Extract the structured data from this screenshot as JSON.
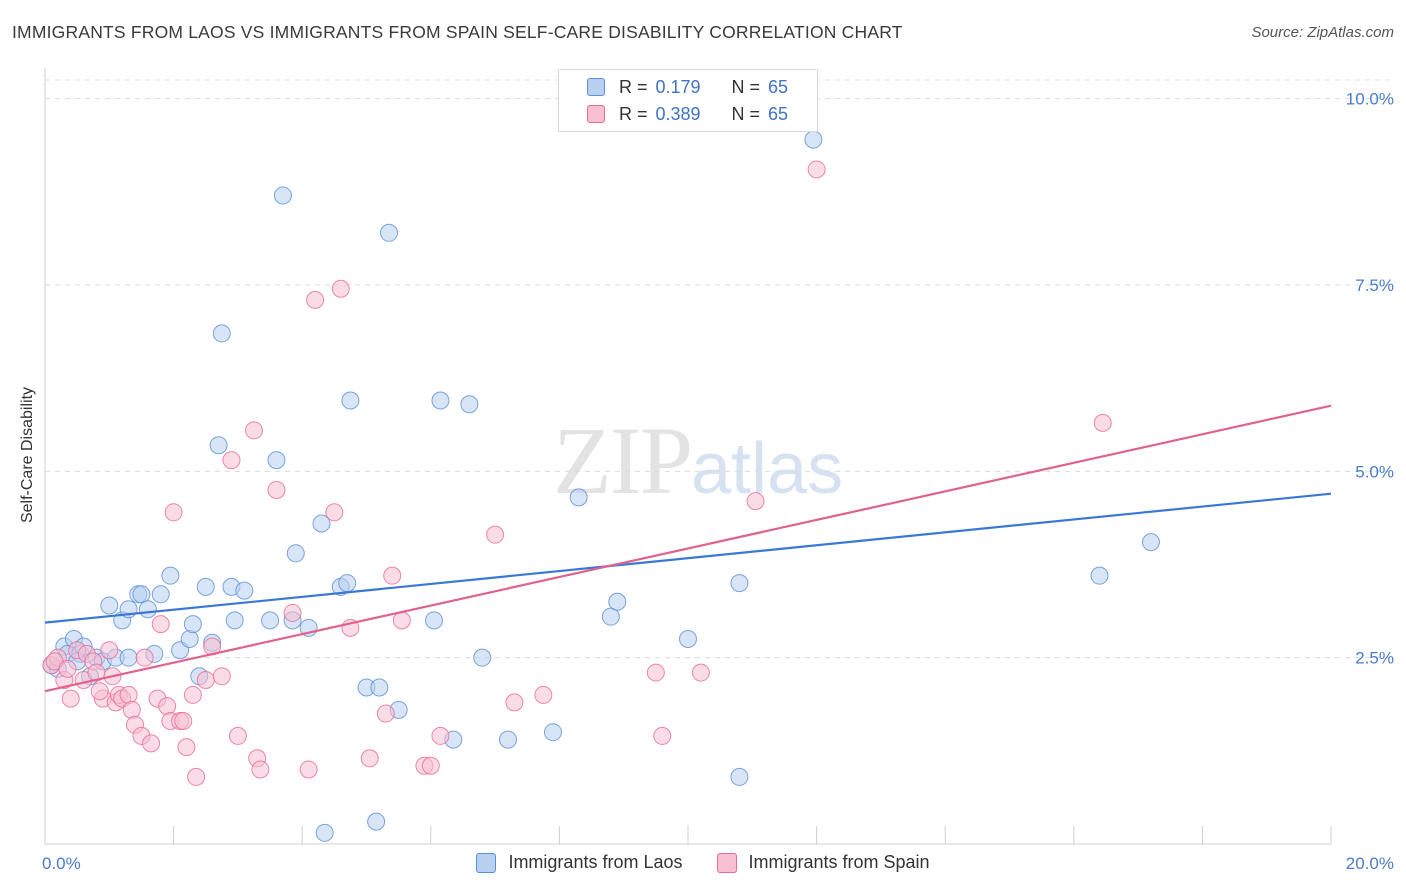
{
  "title": "IMMIGRANTS FROM LAOS VS IMMIGRANTS FROM SPAIN SELF-CARE DISABILITY CORRELATION CHART",
  "source": "Source: ZipAtlas.com",
  "watermark": {
    "zip": "ZIP",
    "atlas": "atlas"
  },
  "colors": {
    "laos": "#5b8fd6",
    "laos_fill": "#b8d0f0",
    "spain": "#e86a96",
    "spain_fill": "#f6bfd2",
    "tick": "#4a7cc9"
  },
  "legend": {
    "rows": [
      {
        "r_label": "R =",
        "r_value": "0.179",
        "n_label": "N =",
        "n_value": "65"
      },
      {
        "r_label": "R =",
        "r_value": "0.389",
        "n_label": "N =",
        "n_value": "65"
      }
    ]
  },
  "bottom_legend": {
    "laos": "Immigrants from Laos",
    "spain": "Immigrants from Spain"
  },
  "chart_data": {
    "type": "scatter",
    "title": "IMMIGRANTS FROM LAOS VS IMMIGRANTS FROM SPAIN SELF-CARE DISABILITY CORRELATION CHART",
    "xlabel": "",
    "ylabel": "Self-Care Disability",
    "xlim": [
      0,
      20
    ],
    "ylim": [
      0,
      10.25
    ],
    "x_tick_labels": [
      "0.0%",
      "20.0%"
    ],
    "y_ticks": [
      2.5,
      5.0,
      7.5,
      10.0
    ],
    "y_tick_labels": [
      "2.5%",
      "5.0%",
      "7.5%",
      "10.0%"
    ],
    "grid": "horizontal dashed",
    "legend_position": "top-center",
    "series": [
      {
        "name": "Immigrants from Laos",
        "trend": {
          "x": [
            0,
            20
          ],
          "y": [
            2.97,
            4.7
          ]
        },
        "points": [
          [
            0.1,
            2.4
          ],
          [
            0.2,
            2.35
          ],
          [
            0.3,
            2.65
          ],
          [
            0.35,
            2.55
          ],
          [
            0.45,
            2.75
          ],
          [
            0.55,
            2.55
          ],
          [
            0.6,
            2.65
          ],
          [
            0.7,
            2.25
          ],
          [
            0.8,
            2.5
          ],
          [
            0.9,
            2.45
          ],
          [
            1.0,
            3.2
          ],
          [
            1.1,
            2.5
          ],
          [
            1.2,
            3.0
          ],
          [
            1.3,
            3.15
          ],
          [
            1.45,
            3.35
          ],
          [
            1.5,
            3.35
          ],
          [
            1.6,
            3.15
          ],
          [
            1.7,
            2.55
          ],
          [
            1.8,
            3.35
          ],
          [
            1.95,
            3.6
          ],
          [
            2.1,
            2.6
          ],
          [
            2.25,
            2.75
          ],
          [
            2.3,
            2.95
          ],
          [
            2.4,
            2.25
          ],
          [
            2.5,
            3.45
          ],
          [
            2.6,
            2.7
          ],
          [
            2.7,
            5.35
          ],
          [
            2.75,
            6.85
          ],
          [
            2.9,
            3.45
          ],
          [
            2.95,
            3.0
          ],
          [
            3.1,
            3.4
          ],
          [
            3.5,
            3.0
          ],
          [
            3.6,
            5.15
          ],
          [
            3.7,
            8.7
          ],
          [
            3.85,
            3.0
          ],
          [
            3.9,
            3.9
          ],
          [
            4.1,
            2.9
          ],
          [
            4.3,
            4.3
          ],
          [
            4.35,
            0.15
          ],
          [
            4.6,
            3.45
          ],
          [
            4.7,
            3.5
          ],
          [
            4.75,
            5.95
          ],
          [
            5.0,
            2.1
          ],
          [
            5.15,
            0.3
          ],
          [
            5.2,
            2.1
          ],
          [
            5.35,
            8.2
          ],
          [
            5.5,
            1.8
          ],
          [
            6.05,
            3.0
          ],
          [
            6.15,
            5.95
          ],
          [
            6.35,
            1.4
          ],
          [
            6.6,
            5.9
          ],
          [
            6.8,
            2.5
          ],
          [
            7.2,
            1.4
          ],
          [
            7.9,
            1.5
          ],
          [
            8.3,
            4.65
          ],
          [
            8.8,
            3.05
          ],
          [
            8.9,
            3.25
          ],
          [
            10.0,
            2.75
          ],
          [
            10.8,
            0.9
          ],
          [
            10.8,
            3.5
          ],
          [
            11.95,
            9.45
          ],
          [
            16.4,
            3.6
          ],
          [
            17.2,
            4.05
          ],
          [
            1.3,
            2.5
          ],
          [
            0.5,
            2.45
          ]
        ]
      },
      {
        "name": "Immigrants from Spain",
        "trend": {
          "x": [
            0,
            20
          ],
          "y": [
            2.05,
            5.88
          ]
        },
        "points": [
          [
            0.1,
            2.4
          ],
          [
            0.2,
            2.5
          ],
          [
            0.3,
            2.2
          ],
          [
            0.4,
            1.95
          ],
          [
            0.5,
            2.6
          ],
          [
            0.6,
            2.2
          ],
          [
            0.65,
            2.55
          ],
          [
            0.75,
            2.45
          ],
          [
            0.8,
            2.3
          ],
          [
            0.9,
            1.95
          ],
          [
            1.0,
            2.6
          ],
          [
            1.1,
            1.9
          ],
          [
            1.15,
            2.0
          ],
          [
            1.2,
            1.95
          ],
          [
            1.3,
            2.0
          ],
          [
            1.35,
            1.8
          ],
          [
            1.4,
            1.6
          ],
          [
            1.5,
            1.45
          ],
          [
            1.55,
            2.5
          ],
          [
            1.65,
            1.35
          ],
          [
            1.75,
            1.95
          ],
          [
            1.8,
            2.95
          ],
          [
            1.9,
            1.85
          ],
          [
            1.95,
            1.65
          ],
          [
            2.0,
            4.45
          ],
          [
            2.1,
            1.65
          ],
          [
            2.15,
            1.65
          ],
          [
            2.2,
            1.3
          ],
          [
            2.3,
            2.0
          ],
          [
            2.35,
            0.9
          ],
          [
            2.5,
            2.2
          ],
          [
            2.6,
            2.65
          ],
          [
            2.75,
            2.25
          ],
          [
            2.9,
            5.15
          ],
          [
            3.0,
            1.45
          ],
          [
            3.25,
            5.55
          ],
          [
            3.3,
            1.15
          ],
          [
            3.35,
            1.0
          ],
          [
            3.6,
            4.75
          ],
          [
            3.85,
            3.1
          ],
          [
            4.1,
            1.0
          ],
          [
            4.2,
            7.3
          ],
          [
            4.5,
            4.45
          ],
          [
            4.6,
            7.45
          ],
          [
            4.75,
            2.9
          ],
          [
            5.05,
            1.15
          ],
          [
            5.3,
            1.75
          ],
          [
            5.4,
            3.6
          ],
          [
            5.55,
            3.0
          ],
          [
            5.9,
            1.05
          ],
          [
            6.0,
            1.05
          ],
          [
            6.15,
            1.45
          ],
          [
            7.0,
            4.15
          ],
          [
            7.3,
            1.9
          ],
          [
            7.75,
            2.0
          ],
          [
            9.5,
            2.3
          ],
          [
            9.6,
            1.45
          ],
          [
            10.2,
            2.3
          ],
          [
            11.05,
            4.6
          ],
          [
            12.0,
            9.05
          ],
          [
            16.45,
            5.65
          ],
          [
            0.15,
            2.45
          ],
          [
            0.35,
            2.35
          ],
          [
            1.05,
            2.25
          ],
          [
            0.85,
            2.05
          ]
        ]
      }
    ]
  }
}
